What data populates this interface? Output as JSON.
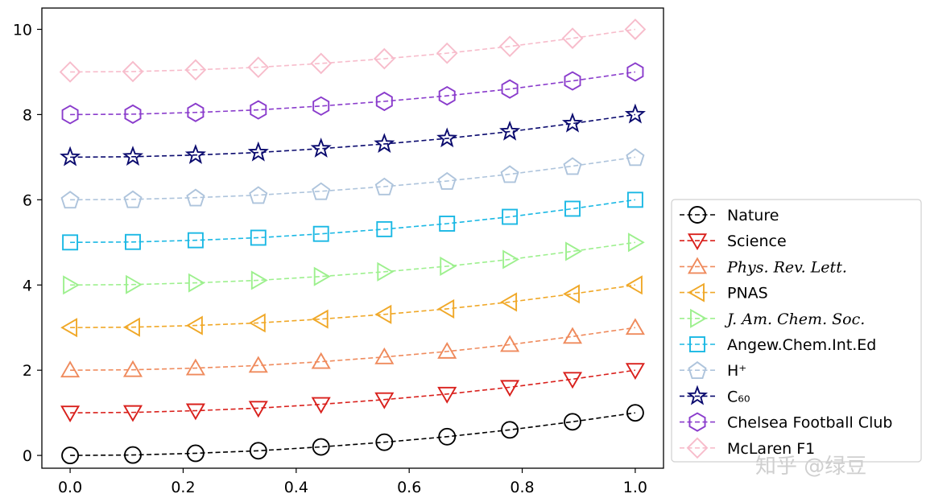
{
  "chart_data": {
    "type": "line",
    "title": "",
    "xlabel": "",
    "ylabel": "",
    "xlim": [
      -0.05,
      1.05
    ],
    "ylim": [
      -0.3,
      10.5
    ],
    "grid": false,
    "legend_position": "right",
    "x_ticks": [
      "0.0",
      "0.2",
      "0.4",
      "0.6",
      "0.8",
      "1.0"
    ],
    "y_ticks": [
      "0",
      "2",
      "4",
      "6",
      "8",
      "10"
    ],
    "x": [
      0.0,
      0.111,
      0.222,
      0.333,
      0.444,
      0.556,
      0.667,
      0.778,
      0.889,
      1.0
    ],
    "series": [
      {
        "name": "Nature",
        "marker": "circle",
        "color": "#000000",
        "values": [
          0.0,
          0.01,
          0.05,
          0.11,
          0.2,
          0.31,
          0.44,
          0.6,
          0.79,
          1.0
        ]
      },
      {
        "name": "Science",
        "marker": "triangle-down",
        "color": "#d9201c",
        "values": [
          1.0,
          1.01,
          1.05,
          1.11,
          1.2,
          1.31,
          1.44,
          1.6,
          1.79,
          2.0
        ]
      },
      {
        "name": "Phys. Rev. Lett.",
        "marker": "triangle-up",
        "color": "#ef8a5c",
        "italic": true,
        "values": [
          2.0,
          2.01,
          2.05,
          2.11,
          2.2,
          2.31,
          2.44,
          2.6,
          2.79,
          3.0
        ]
      },
      {
        "name": "PNAS",
        "marker": "triangle-left",
        "color": "#f0a828",
        "values": [
          3.0,
          3.01,
          3.05,
          3.11,
          3.2,
          3.31,
          3.44,
          3.6,
          3.79,
          4.0
        ]
      },
      {
        "name": "J. Am. Chem. Soc.",
        "marker": "triangle-right",
        "color": "#9df08e",
        "italic": true,
        "values": [
          4.0,
          4.01,
          4.05,
          4.11,
          4.2,
          4.31,
          4.44,
          4.6,
          4.79,
          5.0
        ]
      },
      {
        "name": "Angew.Chem.Int.Ed",
        "marker": "square",
        "color": "#1ab8e4",
        "values": [
          5.0,
          5.01,
          5.05,
          5.11,
          5.2,
          5.31,
          5.44,
          5.6,
          5.79,
          6.0
        ]
      },
      {
        "name": "H⁺",
        "marker": "pentagon",
        "color": "#aec4dc",
        "values": [
          6.0,
          6.01,
          6.05,
          6.11,
          6.2,
          6.31,
          6.44,
          6.6,
          6.79,
          7.0
        ]
      },
      {
        "name": "C₆₀",
        "marker": "star",
        "color": "#0a0a6e",
        "values": [
          7.0,
          7.01,
          7.05,
          7.11,
          7.2,
          7.31,
          7.44,
          7.6,
          7.79,
          8.0
        ]
      },
      {
        "name": "Chelsea Football Club",
        "marker": "hexagon",
        "color": "#8a3ccc",
        "values": [
          8.0,
          8.01,
          8.05,
          8.11,
          8.2,
          8.31,
          8.44,
          8.6,
          8.79,
          9.0
        ]
      },
      {
        "name": "McLaren F1",
        "marker": "diamond",
        "color": "#f7bccb",
        "values": [
          9.0,
          9.01,
          9.05,
          9.11,
          9.2,
          9.31,
          9.44,
          9.6,
          9.79,
          10.0
        ]
      }
    ],
    "watermark": "知乎 @绿豆"
  }
}
